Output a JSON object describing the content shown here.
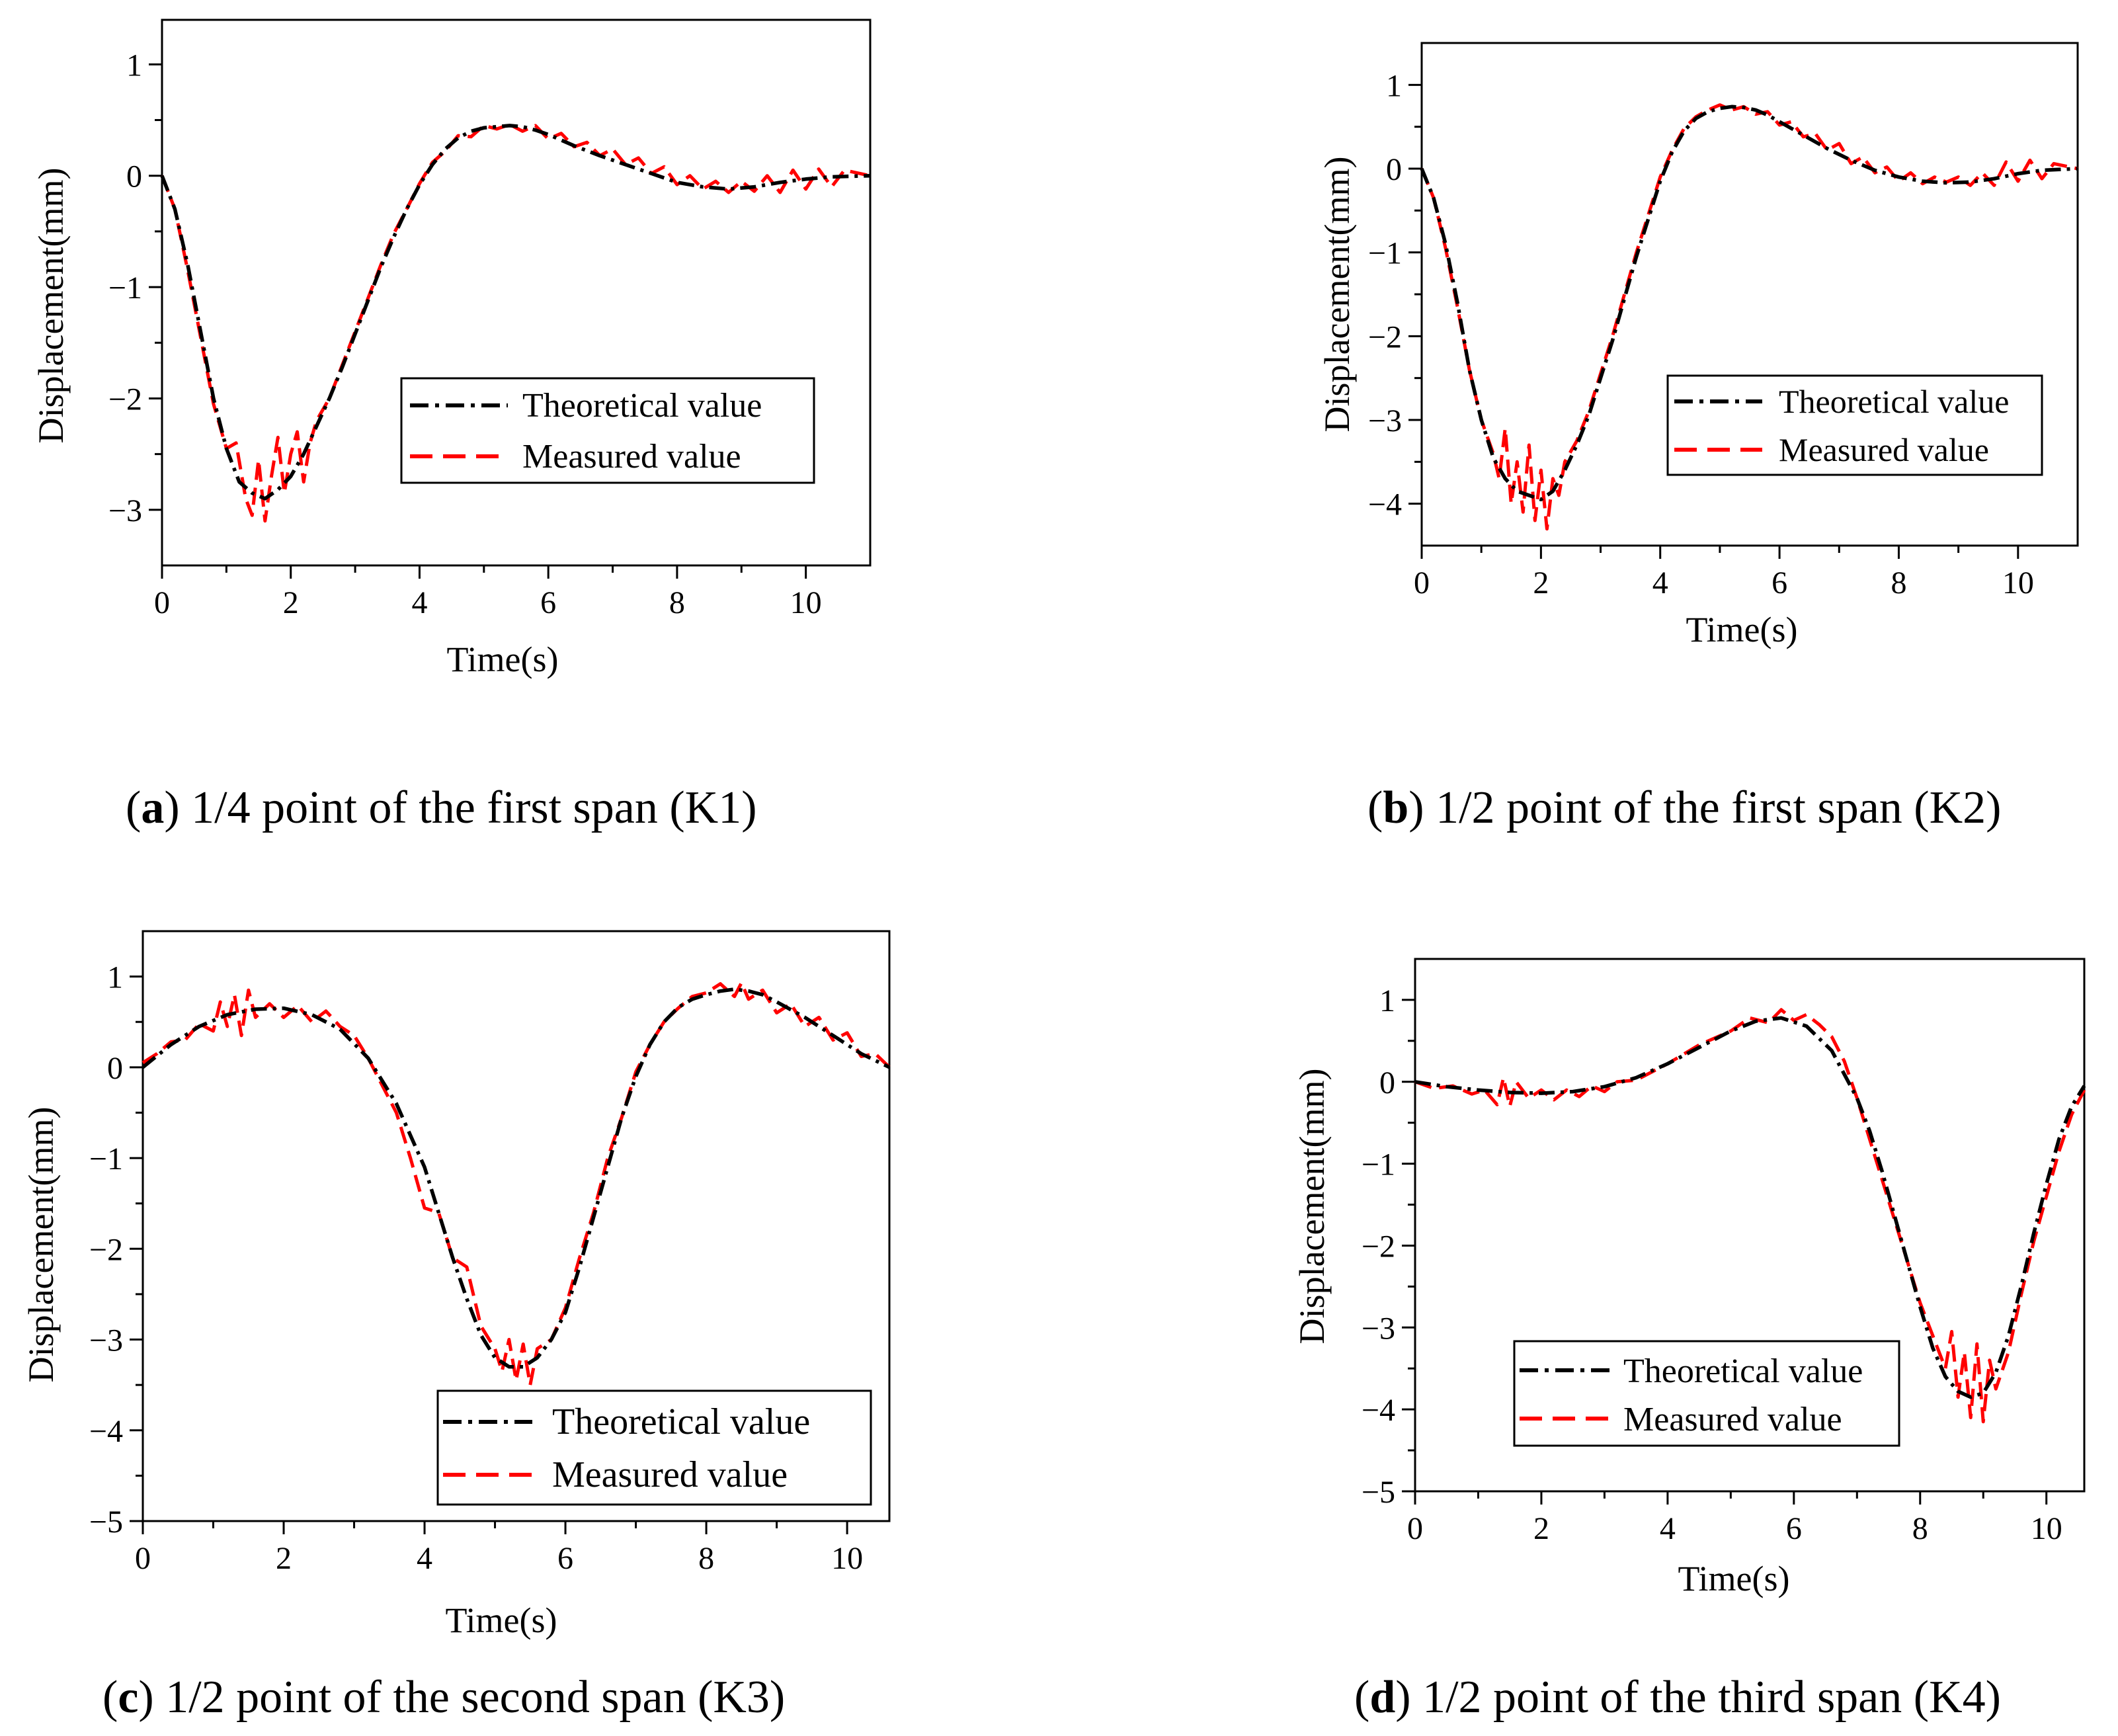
{
  "chart_data": [
    {
      "type": "line",
      "panel_letter": "a",
      "caption": "1/4 point of the first span (K1)",
      "xlabel": "Time(s)",
      "ylabel": "Displacement(mm)",
      "xlim": [
        0,
        11
      ],
      "ylim": [
        -3.5,
        1.4
      ],
      "xticks": [
        0,
        2,
        4,
        6,
        8,
        10
      ],
      "yticks": [
        -3,
        -2,
        -1,
        0,
        1
      ],
      "legend_position": "center-right",
      "series": [
        {
          "name": "Theoretical value",
          "color": "#000000",
          "dash": "dash-dot",
          "x": [
            0,
            0.2,
            0.4,
            0.6,
            0.8,
            1.0,
            1.2,
            1.4,
            1.6,
            1.8,
            2.0,
            2.2,
            2.4,
            2.6,
            2.8,
            3.0,
            3.2,
            3.4,
            3.6,
            3.8,
            4.0,
            4.2,
            4.4,
            4.6,
            4.8,
            5.0,
            5.2,
            5.4,
            5.6,
            5.8,
            6.0,
            6.4,
            6.8,
            7.2,
            7.6,
            8.0,
            8.4,
            8.8,
            9.2,
            9.6,
            10.0,
            10.4,
            11.0
          ],
          "y": [
            0,
            -0.3,
            -0.8,
            -1.4,
            -2.0,
            -2.45,
            -2.75,
            -2.85,
            -2.9,
            -2.82,
            -2.7,
            -2.5,
            -2.25,
            -2.0,
            -1.72,
            -1.42,
            -1.12,
            -0.82,
            -0.55,
            -0.3,
            -0.08,
            0.1,
            0.24,
            0.34,
            0.4,
            0.43,
            0.44,
            0.45,
            0.44,
            0.41,
            0.37,
            0.27,
            0.18,
            0.1,
            0.02,
            -0.06,
            -0.1,
            -0.12,
            -0.1,
            -0.06,
            -0.03,
            -0.01,
            0
          ]
        },
        {
          "name": "Measured value",
          "color": "#ff0000",
          "dash": "dashed",
          "x": [
            0,
            0.2,
            0.4,
            0.6,
            0.8,
            1.0,
            1.15,
            1.3,
            1.4,
            1.5,
            1.6,
            1.7,
            1.8,
            1.9,
            2.0,
            2.1,
            2.2,
            2.3,
            2.4,
            2.6,
            2.8,
            3.0,
            3.2,
            3.4,
            3.6,
            3.8,
            4.0,
            4.2,
            4.4,
            4.6,
            4.8,
            5.0,
            5.2,
            5.4,
            5.6,
            5.8,
            6.0,
            6.2,
            6.4,
            6.6,
            6.8,
            7.0,
            7.2,
            7.4,
            7.6,
            7.8,
            8.0,
            8.2,
            8.4,
            8.6,
            8.8,
            9.0,
            9.2,
            9.4,
            9.6,
            9.8,
            10.0,
            10.2,
            10.4,
            10.6,
            11.0
          ],
          "y": [
            0,
            -0.3,
            -0.85,
            -1.45,
            -2.05,
            -2.45,
            -2.4,
            -2.9,
            -3.05,
            -2.55,
            -3.1,
            -2.7,
            -2.35,
            -2.85,
            -2.5,
            -2.3,
            -2.75,
            -2.4,
            -2.2,
            -2.0,
            -1.7,
            -1.4,
            -1.1,
            -0.8,
            -0.52,
            -0.3,
            -0.07,
            0.12,
            0.22,
            0.36,
            0.35,
            0.45,
            0.42,
            0.46,
            0.4,
            0.45,
            0.33,
            0.38,
            0.26,
            0.3,
            0.18,
            0.24,
            0.1,
            0.16,
            0.02,
            0.08,
            -0.08,
            0.0,
            -0.12,
            -0.05,
            -0.15,
            -0.05,
            -0.14,
            0.0,
            -0.15,
            0.05,
            -0.12,
            0.06,
            -0.1,
            0.05,
            0
          ]
        }
      ]
    },
    {
      "type": "line",
      "panel_letter": "b",
      "caption": "1/2 point of the first span (K2)",
      "xlabel": "Time(s)",
      "ylabel": "Displacement(mm)",
      "xlim": [
        0,
        11
      ],
      "ylim": [
        -4.5,
        1.5
      ],
      "xticks": [
        0,
        2,
        4,
        6,
        8,
        10
      ],
      "yticks": [
        -4,
        -3,
        -2,
        -1,
        0,
        1
      ],
      "legend_position": "center-right",
      "series": [
        {
          "name": "Theoretical value",
          "color": "#000000",
          "dash": "dash-dot",
          "x": [
            0,
            0.2,
            0.4,
            0.6,
            0.8,
            1.0,
            1.2,
            1.4,
            1.6,
            1.8,
            2.0,
            2.2,
            2.4,
            2.6,
            2.8,
            3.0,
            3.2,
            3.4,
            3.6,
            3.8,
            4.0,
            4.2,
            4.4,
            4.6,
            4.8,
            5.0,
            5.2,
            5.4,
            5.6,
            5.8,
            6.0,
            6.4,
            6.8,
            7.2,
            7.6,
            8.0,
            8.4,
            8.8,
            9.2,
            9.6,
            10.0,
            10.4,
            11.0
          ],
          "y": [
            0,
            -0.35,
            -0.9,
            -1.6,
            -2.4,
            -3.0,
            -3.45,
            -3.7,
            -3.85,
            -3.9,
            -3.95,
            -3.85,
            -3.6,
            -3.3,
            -2.95,
            -2.5,
            -2.05,
            -1.55,
            -1.05,
            -0.6,
            -0.15,
            0.2,
            0.45,
            0.6,
            0.68,
            0.72,
            0.74,
            0.73,
            0.7,
            0.64,
            0.56,
            0.4,
            0.24,
            0.1,
            -0.02,
            -0.1,
            -0.15,
            -0.17,
            -0.16,
            -0.12,
            -0.06,
            -0.02,
            0
          ]
        },
        {
          "name": "Measured value",
          "color": "#ff0000",
          "dash": "dashed",
          "x": [
            0,
            0.2,
            0.4,
            0.6,
            0.8,
            1.0,
            1.2,
            1.3,
            1.4,
            1.5,
            1.6,
            1.7,
            1.8,
            1.9,
            2.0,
            2.1,
            2.2,
            2.3,
            2.4,
            2.6,
            2.8,
            3.0,
            3.2,
            3.4,
            3.6,
            3.8,
            4.0,
            4.2,
            4.4,
            4.6,
            4.8,
            5.0,
            5.2,
            5.4,
            5.6,
            5.8,
            6.0,
            6.2,
            6.4,
            6.6,
            6.8,
            7.0,
            7.2,
            7.4,
            7.6,
            7.8,
            8.0,
            8.2,
            8.4,
            8.6,
            8.8,
            9.0,
            9.2,
            9.4,
            9.6,
            9.8,
            10.0,
            10.2,
            10.4,
            10.6,
            11.0
          ],
          "y": [
            0,
            -0.35,
            -0.95,
            -1.65,
            -2.4,
            -3.0,
            -3.4,
            -3.7,
            -3.1,
            -4.0,
            -3.5,
            -4.1,
            -3.3,
            -4.2,
            -3.6,
            -4.3,
            -3.7,
            -3.9,
            -3.5,
            -3.25,
            -2.9,
            -2.45,
            -2.0,
            -1.5,
            -1.0,
            -0.55,
            -0.1,
            0.22,
            0.48,
            0.62,
            0.7,
            0.76,
            0.7,
            0.74,
            0.65,
            0.68,
            0.52,
            0.56,
            0.38,
            0.42,
            0.22,
            0.3,
            0.06,
            0.14,
            -0.05,
            0.02,
            -0.15,
            -0.05,
            -0.18,
            -0.1,
            -0.16,
            -0.1,
            -0.2,
            -0.05,
            -0.2,
            0.08,
            -0.15,
            0.1,
            -0.12,
            0.06,
            0
          ]
        }
      ]
    },
    {
      "type": "line",
      "panel_letter": "c",
      "caption": "1/2 point of the second span (K3)",
      "xlabel": "Time(s)",
      "ylabel": "Displacement(mm)",
      "xlim": [
        0,
        10.6
      ],
      "ylim": [
        -5,
        1.5
      ],
      "xticks": [
        0,
        2,
        4,
        6,
        8,
        10
      ],
      "yticks": [
        -5,
        -4,
        -3,
        -2,
        -1,
        0,
        1
      ],
      "legend_position": "bottom-right",
      "series": [
        {
          "name": "Theoretical value",
          "color": "#000000",
          "dash": "dash-dot",
          "x": [
            0,
            0.4,
            0.8,
            1.2,
            1.6,
            2.0,
            2.4,
            2.8,
            3.2,
            3.6,
            4.0,
            4.2,
            4.4,
            4.6,
            4.8,
            5.0,
            5.2,
            5.4,
            5.6,
            5.8,
            6.0,
            6.2,
            6.4,
            6.6,
            6.8,
            7.0,
            7.2,
            7.4,
            7.6,
            7.8,
            8.0,
            8.2,
            8.4,
            8.6,
            8.8,
            9.0,
            9.4,
            9.8,
            10.2,
            10.6
          ],
          "y": [
            0,
            0.25,
            0.45,
            0.58,
            0.64,
            0.65,
            0.58,
            0.42,
            0.1,
            -0.4,
            -1.1,
            -1.6,
            -2.1,
            -2.55,
            -2.95,
            -3.2,
            -3.3,
            -3.3,
            -3.2,
            -3.0,
            -2.7,
            -2.2,
            -1.65,
            -1.1,
            -0.55,
            -0.1,
            0.25,
            0.5,
            0.66,
            0.75,
            0.8,
            0.84,
            0.86,
            0.84,
            0.8,
            0.72,
            0.55,
            0.35,
            0.15,
            0
          ]
        },
        {
          "name": "Measured value",
          "color": "#ff0000",
          "dash": "dashed",
          "x": [
            0,
            0.2,
            0.4,
            0.6,
            0.8,
            1.0,
            1.1,
            1.2,
            1.3,
            1.4,
            1.5,
            1.6,
            1.8,
            2.0,
            2.2,
            2.4,
            2.6,
            2.8,
            3.0,
            3.2,
            3.4,
            3.6,
            3.8,
            4.0,
            4.2,
            4.4,
            4.6,
            4.8,
            5.0,
            5.1,
            5.2,
            5.3,
            5.4,
            5.5,
            5.6,
            5.8,
            6.0,
            6.2,
            6.4,
            6.6,
            6.8,
            7.0,
            7.2,
            7.4,
            7.6,
            7.8,
            8.0,
            8.2,
            8.4,
            8.5,
            8.6,
            8.8,
            9.0,
            9.2,
            9.4,
            9.6,
            9.8,
            10.0,
            10.2,
            10.4,
            10.6
          ],
          "y": [
            0.05,
            0.15,
            0.28,
            0.3,
            0.48,
            0.4,
            0.72,
            0.45,
            0.8,
            0.35,
            0.85,
            0.55,
            0.7,
            0.55,
            0.68,
            0.5,
            0.62,
            0.45,
            0.35,
            0.1,
            -0.2,
            -0.5,
            -1.0,
            -1.55,
            -1.6,
            -2.1,
            -2.2,
            -2.85,
            -3.1,
            -3.35,
            -3.0,
            -3.45,
            -3.05,
            -3.5,
            -3.1,
            -3.0,
            -2.65,
            -2.1,
            -1.6,
            -1.0,
            -0.55,
            -0.05,
            0.25,
            0.5,
            0.65,
            0.78,
            0.82,
            0.92,
            0.78,
            0.93,
            0.75,
            0.85,
            0.6,
            0.7,
            0.45,
            0.55,
            0.3,
            0.38,
            0.12,
            0.15,
            0
          ]
        }
      ]
    },
    {
      "type": "line",
      "panel_letter": "d",
      "caption": "1/2 point of the third span (K4)",
      "xlabel": "Time(s)",
      "ylabel": "Displacement(mm)",
      "xlim": [
        0,
        10.6
      ],
      "ylim": [
        -5,
        1.5
      ],
      "xticks": [
        0,
        2,
        4,
        6,
        8,
        10
      ],
      "yticks": [
        -5,
        -4,
        -3,
        -2,
        -1,
        0,
        1
      ],
      "legend_position": "center",
      "series": [
        {
          "name": "Theoretical value",
          "color": "#000000",
          "dash": "dash-dot",
          "x": [
            0,
            0.5,
            1.0,
            1.5,
            2.0,
            2.5,
            3.0,
            3.5,
            4.0,
            4.5,
            5.0,
            5.4,
            5.8,
            6.2,
            6.6,
            7.0,
            7.2,
            7.4,
            7.6,
            7.8,
            8.0,
            8.2,
            8.4,
            8.6,
            8.8,
            9.0,
            9.2,
            9.4,
            9.6,
            9.8,
            10.0,
            10.2,
            10.4,
            10.6
          ],
          "y": [
            0,
            -0.06,
            -0.1,
            -0.13,
            -0.14,
            -0.12,
            -0.06,
            0.05,
            0.22,
            0.42,
            0.62,
            0.74,
            0.78,
            0.68,
            0.38,
            -0.2,
            -0.6,
            -1.1,
            -1.65,
            -2.2,
            -2.75,
            -3.25,
            -3.6,
            -3.78,
            -3.85,
            -3.8,
            -3.55,
            -3.1,
            -2.5,
            -1.85,
            -1.25,
            -0.7,
            -0.3,
            -0.05
          ]
        },
        {
          "name": "Measured value",
          "color": "#ff0000",
          "dash": "dashed",
          "x": [
            0,
            0.3,
            0.6,
            0.9,
            1.1,
            1.3,
            1.4,
            1.5,
            1.6,
            1.8,
            2.0,
            2.2,
            2.4,
            2.6,
            2.8,
            3.0,
            3.2,
            3.5,
            4.0,
            4.5,
            5.0,
            5.3,
            5.6,
            5.8,
            6.0,
            6.2,
            6.4,
            6.6,
            6.8,
            7.0,
            7.2,
            7.4,
            7.6,
            7.8,
            8.0,
            8.2,
            8.4,
            8.5,
            8.6,
            8.7,
            8.8,
            8.9,
            9.0,
            9.1,
            9.2,
            9.4,
            9.6,
            9.8,
            10.0,
            10.2,
            10.4,
            10.6
          ],
          "y": [
            0,
            -0.08,
            -0.05,
            -0.15,
            -0.1,
            -0.28,
            0.05,
            -0.3,
            0.0,
            -0.2,
            -0.1,
            -0.22,
            -0.1,
            -0.18,
            -0.05,
            -0.12,
            0.0,
            0.02,
            0.22,
            0.45,
            0.62,
            0.78,
            0.72,
            0.88,
            0.75,
            0.82,
            0.7,
            0.55,
            0.25,
            -0.2,
            -0.7,
            -1.2,
            -1.7,
            -2.2,
            -2.7,
            -3.1,
            -3.5,
            -3.05,
            -3.85,
            -3.3,
            -4.1,
            -3.2,
            -4.15,
            -3.4,
            -3.75,
            -3.3,
            -2.6,
            -1.95,
            -1.4,
            -0.85,
            -0.4,
            -0.1
          ]
        }
      ]
    }
  ]
}
